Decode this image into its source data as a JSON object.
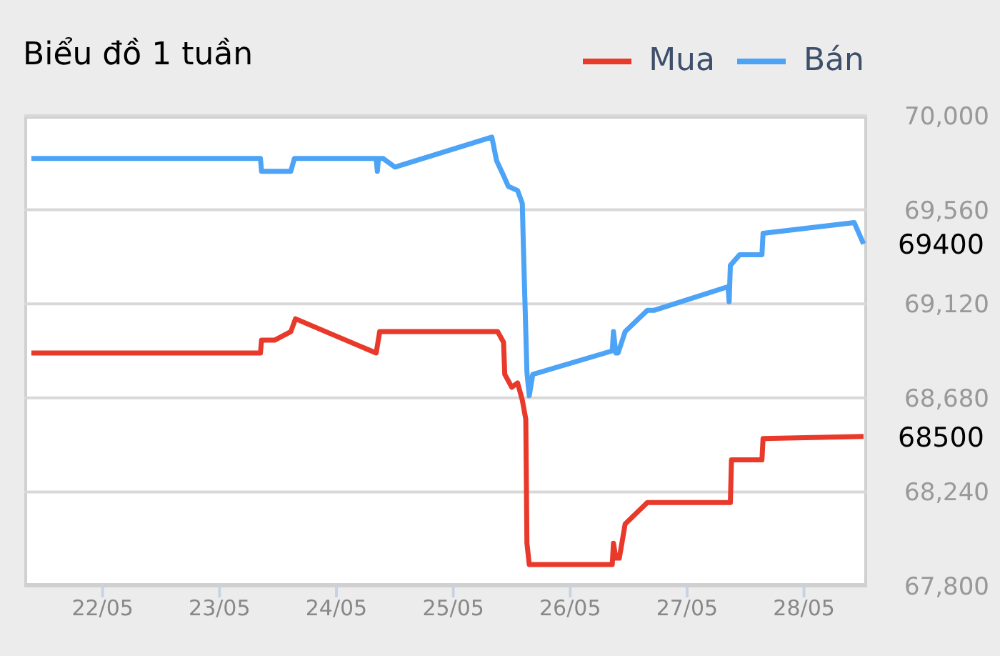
{
  "chart_data": {
    "type": "line",
    "title": "Biểu đồ 1 tuần",
    "legend": "top right",
    "grid": "y",
    "xlim": [
      "--05-21T07:55",
      "--05-28T12:58"
    ],
    "xticks": [
      {
        "value": "--05-22",
        "label": "22/05"
      },
      {
        "value": "--05-23",
        "label": "23/05"
      },
      {
        "value": "--05-24",
        "label": "24/05"
      },
      {
        "value": "--05-25",
        "label": "25/05"
      },
      {
        "value": "--05-26",
        "label": "26/05"
      },
      {
        "value": "--05-27",
        "label": "27/05"
      },
      {
        "value": "--05-28",
        "label": "28/05"
      }
    ],
    "ylim": [
      67800,
      70000
    ],
    "yticks": [
      {
        "value": 67800,
        "label": "67,800"
      },
      {
        "value": 68240,
        "label": "68,240"
      },
      {
        "value": 68680,
        "label": "68,680"
      },
      {
        "value": 69120,
        "label": "69,120"
      },
      {
        "value": 69560,
        "label": "69,560"
      },
      {
        "value": 70000,
        "label": "70,000"
      }
    ],
    "series": [
      {
        "name": "Mua",
        "color": "#e8392a",
        "x": [
          "--05-21T09:22",
          "--05-23T08:24",
          "--05-23T08:38",
          "--05-23T11:17",
          "--05-23T14:38",
          "--05-23T15:36",
          "--05-24T08:10",
          "--05-24T08:53",
          "--05-25T09:07",
          "--05-25T10:19",
          "--05-25T10:34",
          "--05-25T12:00",
          "--05-25T13:12",
          "--05-25T14:10",
          "--05-25T14:53",
          "--05-25T15:07",
          "--05-25T15:36",
          "--05-26T08:38",
          "--05-26T08:53",
          "--05-26T09:22",
          "--05-26T10:05",
          "--05-26T11:17",
          "--05-26T15:50",
          "--05-27T08:53",
          "--05-27T09:07",
          "--05-27T15:22",
          "--05-27T15:36",
          "--05-28T12:14"
        ],
        "values": [
          68890,
          68890,
          68950,
          68950,
          68990,
          69050,
          68890,
          68990,
          68990,
          68940,
          68790,
          68730,
          68750,
          68670,
          68580,
          68000,
          67900,
          67900,
          68000,
          67930,
          67930,
          68090,
          68190,
          68190,
          68390,
          68390,
          68490,
          68500
        ],
        "value_labels": [
          null,
          null,
          null,
          null,
          null,
          null,
          null,
          null,
          null,
          null,
          null,
          null,
          null,
          null,
          null,
          null,
          null,
          null,
          null,
          null,
          null,
          null,
          null,
          null,
          null,
          null,
          null,
          "68500"
        ]
      },
      {
        "name": "Bán",
        "color": "#4da3f5",
        "x": [
          "--05-21T09:22",
          "--05-23T08:24",
          "--05-23T08:38",
          "--05-23T14:38",
          "--05-23T15:22",
          "--05-24T08:10",
          "--05-24T08:24",
          "--05-24T08:38",
          "--05-24T09:36",
          "--05-24T12:00",
          "--05-25T07:55",
          "--05-25T08:53",
          "--05-25T10:19",
          "--05-25T11:17",
          "--05-25T13:12",
          "--05-25T14:10",
          "--05-25T14:24",
          "--05-25T15:07",
          "--05-25T15:36",
          "--05-25T16:19",
          "--05-26T08:38",
          "--05-26T08:53",
          "--05-26T09:22",
          "--05-26T09:50",
          "--05-26T11:17",
          "--05-26T15:50",
          "--05-26T17:17",
          "--05-27T08:24",
          "--05-27T08:38",
          "--05-27T08:53",
          "--05-27T10:48",
          "--05-27T15:22",
          "--05-27T15:36",
          "--05-28T10:19",
          "--05-28T12:14"
        ],
        "values": [
          69800,
          69800,
          69740,
          69740,
          69800,
          69800,
          69740,
          69800,
          69800,
          69760,
          69900,
          69790,
          69720,
          69670,
          69650,
          69590,
          69380,
          68800,
          68690,
          68790,
          68900,
          68990,
          68890,
          68890,
          68990,
          69090,
          69090,
          69200,
          69130,
          69300,
          69350,
          69350,
          69450,
          69500,
          69400
        ],
        "value_labels": [
          null,
          null,
          null,
          null,
          null,
          null,
          null,
          null,
          null,
          null,
          null,
          null,
          null,
          null,
          null,
          null,
          null,
          null,
          null,
          null,
          null,
          null,
          null,
          null,
          null,
          null,
          null,
          null,
          null,
          null,
          null,
          null,
          null,
          null,
          "69400"
        ]
      }
    ]
  }
}
